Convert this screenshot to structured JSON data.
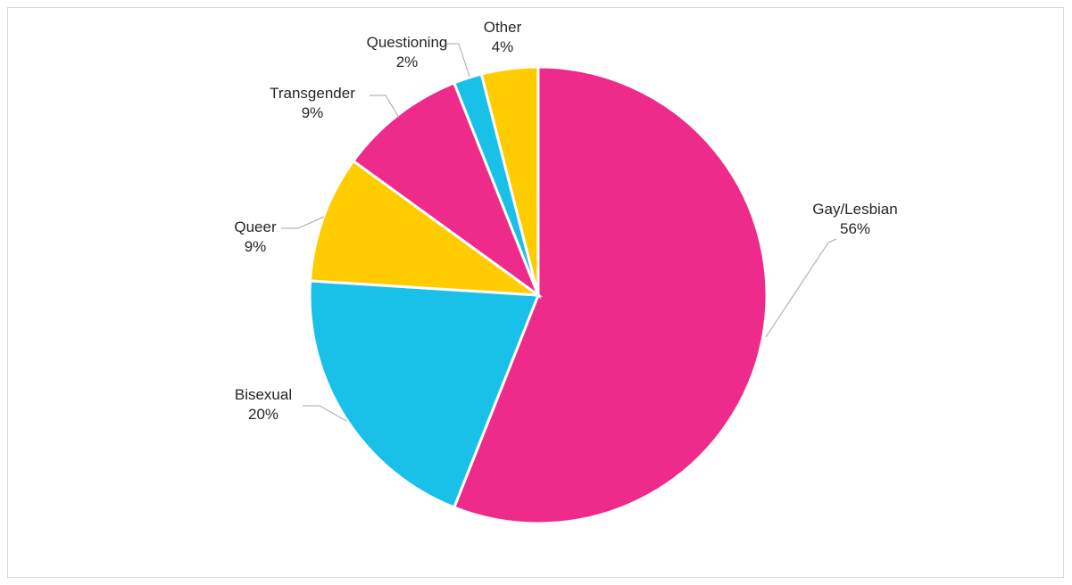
{
  "chart_data": {
    "type": "pie",
    "title": "",
    "slices": [
      {
        "label": "Gay/Lesbian",
        "value": 56,
        "display": "56%",
        "color": "#ee2a8a"
      },
      {
        "label": "Bisexual",
        "value": 20,
        "display": "20%",
        "color": "#19c0e8"
      },
      {
        "label": "Queer",
        "value": 9,
        "display": "9%",
        "color": "#ffcc00"
      },
      {
        "label": "Transgender",
        "value": 9,
        "display": "9%",
        "color": "#ee2a8a"
      },
      {
        "label": "Questioning",
        "value": 2,
        "display": "2%",
        "color": "#19c0e8"
      },
      {
        "label": "Other",
        "value": 4,
        "display": "4%",
        "color": "#ffcc00"
      }
    ],
    "start_angle_deg": 0,
    "direction": "clockwise",
    "legend": "none",
    "data_labels": "outside with leader lines"
  }
}
